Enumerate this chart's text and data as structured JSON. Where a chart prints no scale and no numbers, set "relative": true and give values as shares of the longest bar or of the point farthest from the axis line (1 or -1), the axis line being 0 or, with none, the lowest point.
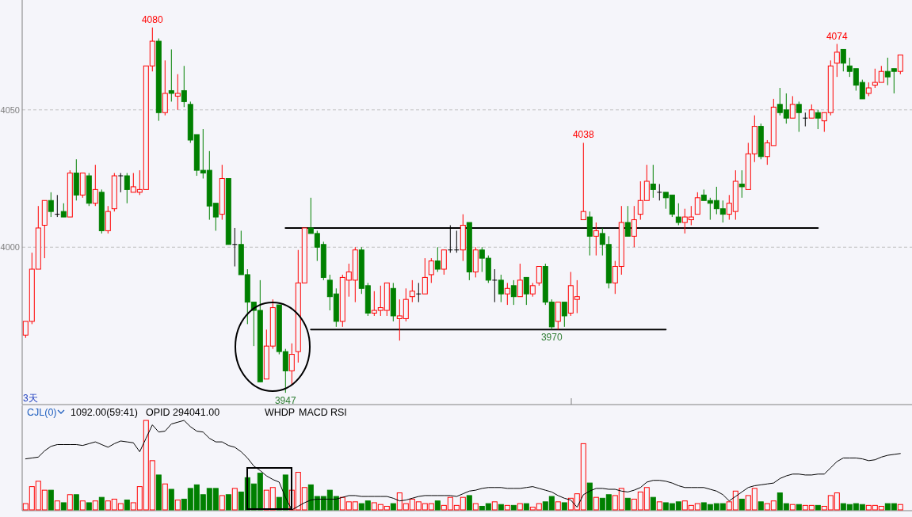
{
  "chart_data": [
    {
      "type": "candlestick",
      "categories": [
        null,
        null,
        null,
        null,
        null,
        null,
        null,
        null,
        null,
        null,
        null,
        null,
        null,
        null,
        null,
        null,
        null,
        null,
        null,
        null,
        null,
        null,
        null,
        null,
        null,
        null,
        null,
        null,
        null,
        null,
        null,
        null,
        null,
        null,
        null,
        null,
        null,
        null,
        null,
        null,
        null,
        null,
        null,
        null,
        null,
        null,
        null,
        null,
        null,
        null,
        null,
        null,
        null,
        null,
        null,
        null,
        null,
        null,
        null,
        null,
        null,
        null,
        null,
        null,
        null,
        null,
        null,
        null,
        null,
        null,
        null,
        null,
        null,
        null,
        null,
        null,
        null,
        null,
        null,
        null,
        null,
        null,
        null,
        null,
        null,
        null,
        null,
        null,
        null,
        null,
        null,
        null,
        null,
        null,
        null,
        null,
        null,
        null,
        null,
        null,
        null,
        null,
        null,
        null,
        null,
        null,
        null,
        null,
        null,
        null,
        null,
        null,
        null,
        null,
        null,
        null,
        null,
        null,
        null,
        null,
        null,
        null,
        null,
        null,
        null,
        null,
        null,
        null,
        null,
        null,
        null,
        null,
        null,
        null,
        null,
        null,
        null,
        null,
        null
      ],
      "ohlc": [
        [
          3968,
          3973,
          3967,
          3973
        ],
        [
          3973,
          3998,
          3972,
          3992
        ],
        [
          3992,
          4015,
          3992,
          4007
        ],
        [
          4008,
          4017,
          3996,
          4017
        ],
        [
          4017,
          4020,
          4011,
          4013
        ],
        [
          4012,
          4019,
          4011,
          4012
        ],
        [
          4013,
          4016,
          4011,
          4011
        ],
        [
          4011,
          4028,
          4011,
          4027
        ],
        [
          4027,
          4032,
          4017,
          4019
        ],
        [
          4019,
          4027,
          4018,
          4027
        ],
        [
          4026,
          4027,
          4015,
          4016
        ],
        [
          4016,
          4030,
          4015,
          4021
        ],
        [
          4020,
          4021,
          4005,
          4006
        ],
        [
          4006,
          4015,
          4005,
          4013
        ],
        [
          4014,
          4027,
          4013,
          4026
        ],
        [
          4026,
          4027,
          4020,
          4026
        ],
        [
          4026,
          4027,
          4016,
          4021
        ],
        [
          4020,
          4027,
          4020,
          4022
        ],
        [
          4020,
          4028,
          4019,
          4021
        ],
        [
          4021,
          4066,
          4021,
          4066
        ],
        [
          4066,
          4080,
          4064,
          4075
        ],
        [
          4075,
          4076,
          4046,
          4049
        ],
        [
          4049,
          4068,
          4048,
          4056
        ],
        [
          4057,
          4072,
          4053,
          4056
        ],
        [
          4055,
          4063,
          4050,
          4056
        ],
        [
          4057,
          4066,
          4051,
          4053
        ],
        [
          4052,
          4053,
          4038,
          4039
        ],
        [
          4041,
          4041,
          4026,
          4028
        ],
        [
          4028,
          4043,
          4025,
          4027
        ],
        [
          4028,
          4035,
          4010,
          4015
        ],
        [
          4016,
          4016,
          4006,
          4011
        ],
        [
          4012,
          4030,
          4010,
          4025
        ],
        [
          4025,
          4025,
          4001,
          4001
        ],
        [
          4001,
          4007,
          3993,
          4001
        ],
        [
          4001,
          4006,
          3990,
          3990
        ],
        [
          3990,
          3992,
          3972,
          3980
        ],
        [
          3980,
          3980,
          3964,
          3977
        ],
        [
          3977,
          3988,
          3951,
          3951
        ],
        [
          3952,
          3970,
          3952,
          3964
        ],
        [
          3964,
          3981,
          3963,
          3978
        ],
        [
          3979,
          3979,
          3961,
          3962
        ],
        [
          3962,
          3963,
          3947,
          3955
        ],
        [
          3955,
          3965,
          3950,
          3961
        ],
        [
          3962,
          3999,
          3958,
          3987
        ],
        [
          3987,
          4007,
          3987,
          4007
        ],
        [
          4007,
          4018,
          4005,
          4005
        ],
        [
          4005,
          4006,
          3995,
          4000
        ],
        [
          4001,
          4002,
          3988,
          3989
        ],
        [
          3988,
          3990,
          3977,
          3982
        ],
        [
          3983,
          3985,
          3971,
          3973
        ],
        [
          3973,
          3990,
          3971,
          3989
        ],
        [
          3988,
          3994,
          3982,
          3991
        ],
        [
          3988,
          4000,
          3980,
          3999
        ],
        [
          3999,
          4000,
          3983,
          3985
        ],
        [
          3986,
          3987,
          3975,
          3976
        ],
        [
          3976,
          3984,
          3975,
          3977
        ],
        [
          3977,
          3986,
          3975,
          3978
        ],
        [
          3977,
          3987,
          3975,
          3987
        ],
        [
          3985,
          3987,
          3973,
          3975
        ],
        [
          3974,
          3981,
          3966,
          3975
        ],
        [
          3974,
          3985,
          3973,
          3981
        ],
        [
          3982,
          3988,
          3980,
          3984
        ],
        [
          3983,
          3987,
          3980,
          3983
        ],
        [
          3983,
          3996,
          3983,
          3989
        ],
        [
          3990,
          3996,
          3987,
          3995
        ],
        [
          3995,
          4000,
          3991,
          3992
        ],
        [
          3992,
          3999,
          3990,
          3999
        ],
        [
          3999,
          4008,
          3998,
          3999
        ],
        [
          3999,
          4006,
          3998,
          3999
        ],
        [
          3999,
          4012,
          3995,
          4008
        ],
        [
          4009,
          4009,
          3988,
          3991
        ],
        [
          3991,
          4000,
          3989,
          3999
        ],
        [
          3999,
          4000,
          3991,
          3996
        ],
        [
          3996,
          3997,
          3987,
          3988
        ],
        [
          3988,
          3992,
          3980,
          3988
        ],
        [
          3988,
          3990,
          3980,
          3983
        ],
        [
          3983,
          3987,
          3979,
          3985
        ],
        [
          3986,
          3988,
          3979,
          3982
        ],
        [
          3982,
          3994,
          3982,
          3988
        ],
        [
          3989,
          3989,
          3979,
          3983
        ],
        [
          3983,
          3987,
          3982,
          3986
        ],
        [
          3987,
          3993,
          3986,
          3993
        ],
        [
          3993,
          3994,
          3979,
          3980
        ],
        [
          3980,
          3981,
          3970,
          3971
        ],
        [
          3973,
          3980,
          3970,
          3980
        ],
        [
          3980,
          3980,
          3971,
          3975
        ],
        [
          3976,
          3991,
          3975,
          3986
        ],
        [
          3981,
          3988,
          3976,
          3982
        ],
        [
          4010,
          4038,
          4010,
          4013
        ],
        [
          4011,
          4013,
          3997,
          4004
        ],
        [
          4004,
          4009,
          3997,
          4006
        ],
        [
          4005,
          4007,
          3997,
          4001
        ],
        [
          4001,
          4004,
          3985,
          3987
        ],
        [
          3987,
          3995,
          3983,
          3993
        ],
        [
          3993,
          4015,
          3990,
          4009
        ],
        [
          4009,
          4015,
          4004,
          4004
        ],
        [
          4004,
          4015,
          4000,
          4010
        ],
        [
          4012,
          4024,
          4010,
          4017
        ],
        [
          4017,
          4030,
          4017,
          4024
        ],
        [
          4023,
          4030,
          4018,
          4021
        ],
        [
          4020,
          4023,
          4017,
          4020
        ],
        [
          4020,
          4020,
          4014,
          4018
        ],
        [
          4019,
          4019,
          4011,
          4012
        ],
        [
          4011,
          4016,
          4008,
          4009
        ],
        [
          4009,
          4014,
          4005,
          4011
        ],
        [
          4010,
          4015,
          4008,
          4011
        ],
        [
          4012,
          4020,
          4012,
          4018
        ],
        [
          4019,
          4021,
          4017,
          4017
        ],
        [
          4017,
          4018,
          4010,
          4016
        ],
        [
          4017,
          4022,
          4012,
          4014
        ],
        [
          4014,
          4017,
          4009,
          4012
        ],
        [
          4012,
          4019,
          4010,
          4016
        ],
        [
          4013,
          4028,
          4010,
          4024
        ],
        [
          4023,
          4028,
          4018,
          4022
        ],
        [
          4021,
          4038,
          4021,
          4034
        ],
        [
          4034,
          4048,
          4031,
          4044
        ],
        [
          4044,
          4045,
          4032,
          4033
        ],
        [
          4033,
          4039,
          4030,
          4038
        ],
        [
          4037,
          4054,
          4037,
          4051
        ],
        [
          4052,
          4058,
          4048,
          4049
        ],
        [
          4050,
          4056,
          4045,
          4047
        ],
        [
          4047,
          4055,
          4047,
          4052
        ],
        [
          4052,
          4053,
          4042,
          4049
        ],
        [
          4047,
          4049,
          4044,
          4047
        ],
        [
          4047,
          4052,
          4047,
          4050
        ],
        [
          4049,
          4050,
          4043,
          4047
        ],
        [
          4046,
          4049,
          4042,
          4049
        ],
        [
          4049,
          4068,
          4048,
          4066
        ],
        [
          4067,
          4074,
          4062,
          4071
        ],
        [
          4072,
          4072,
          4064,
          4067
        ],
        [
          4066,
          4069,
          4062,
          4064
        ],
        [
          4065,
          4065,
          4057,
          4059
        ],
        [
          4060,
          4061,
          4054,
          4054
        ],
        [
          4056,
          4060,
          4055,
          4058
        ],
        [
          4059,
          4065,
          4058,
          4060
        ],
        [
          4060,
          4066,
          4060,
          4064
        ],
        [
          4064,
          4069,
          4059,
          4062
        ],
        [
          4065,
          4065,
          4056,
          4064
        ],
        [
          4064,
          4070,
          4063,
          4070
        ]
      ],
      "colors": [
        "#ff0000",
        "#ff0000",
        "#ff0000",
        "#ff0000",
        "#008000",
        "#000000",
        "#008000",
        "#ff0000",
        "#008000",
        "#ff0000",
        "#008000",
        "#ff0000",
        "#008000",
        "#ff0000",
        "#ff0000",
        "#000000",
        "#008000",
        "#ff0000",
        "#ff0000",
        "#ff0000",
        "#ff0000",
        "#008000",
        "#ff0000",
        "#008000",
        "#ff0000",
        "#008000",
        "#008000",
        "#008000",
        "#008000",
        "#008000",
        "#008000",
        "#ff0000",
        "#008000",
        "#000000",
        "#008000",
        "#008000",
        "#008000",
        "#008000",
        "#ff0000",
        "#ff0000",
        "#008000",
        "#008000",
        "#ff0000",
        "#ff0000",
        "#ff0000",
        "#008000",
        "#008000",
        "#008000",
        "#008000",
        "#008000",
        "#ff0000",
        "#ff0000",
        "#ff0000",
        "#008000",
        "#008000",
        "#ff0000",
        "#ff0000",
        "#ff0000",
        "#008000",
        "#ff0000",
        "#ff0000",
        "#ff0000",
        "#000000",
        "#ff0000",
        "#ff0000",
        "#008000",
        "#ff0000",
        "#000000",
        "#000000",
        "#ff0000",
        "#008000",
        "#ff0000",
        "#008000",
        "#008000",
        "#000000",
        "#008000",
        "#ff0000",
        "#008000",
        "#ff0000",
        "#008000",
        "#ff0000",
        "#ff0000",
        "#008000",
        "#008000",
        "#ff0000",
        "#008000",
        "#ff0000",
        "#ff0000",
        "#ff0000",
        "#008000",
        "#ff0000",
        "#008000",
        "#008000",
        "#ff0000",
        "#ff0000",
        "#008000",
        "#ff0000",
        "#ff0000",
        "#ff0000",
        "#008000",
        "#000000",
        "#008000",
        "#008000",
        "#008000",
        "#ff0000",
        "#ff0000",
        "#ff0000",
        "#008000",
        "#008000",
        "#008000",
        "#008000",
        "#ff0000",
        "#ff0000",
        "#008000",
        "#ff0000",
        "#ff0000",
        "#008000",
        "#ff0000",
        "#ff0000",
        "#008000",
        "#008000",
        "#ff0000",
        "#008000",
        "#000000",
        "#ff0000",
        "#008000",
        "#ff0000",
        "#ff0000",
        "#ff0000",
        "#008000",
        "#008000",
        "#008000",
        "#008000",
        "#ff0000",
        "#ff0000",
        "#ff0000",
        "#008000",
        "#008000",
        "#ff0000"
      ],
      "series": [
        {
          "type": "line",
          "color": "#000000",
          "values": [
            null,
            null,
            null,
            null,
            null,
            null,
            null,
            null,
            null,
            null,
            null,
            null,
            null,
            null,
            null,
            null,
            null,
            null,
            null,
            null,
            null,
            null,
            null,
            null,
            null,
            null,
            null,
            null,
            null,
            null,
            null,
            null,
            null,
            null,
            null,
            null,
            null,
            null,
            null,
            null,
            null,
            4007,
            4007,
            4007,
            4007,
            4007,
            4007,
            4007,
            4007,
            4007,
            4007,
            4007,
            4007,
            4007,
            4007,
            4007,
            4007,
            4007,
            4007,
            4007,
            4007,
            4007,
            4007,
            4007,
            4007,
            4007,
            4007,
            4007,
            4007,
            4007,
            4007,
            4007,
            4007,
            4007,
            4007,
            4007,
            4007,
            4007,
            4007,
            4007,
            4007,
            4007,
            4007,
            4007,
            4007,
            4007,
            4007,
            4007,
            4007,
            4007,
            4007,
            4007,
            4007,
            4007,
            4007,
            4007,
            4007,
            4007,
            4007,
            4007,
            4007,
            4007,
            4007,
            4007,
            4007,
            4007,
            4007,
            4007,
            4007,
            4007,
            4007,
            4007,
            4007,
            4007,
            4007,
            4007,
            4007,
            4007,
            4007,
            4007,
            4007,
            4007,
            4007,
            4007,
            4007,
            4007,
            null,
            null,
            null,
            null,
            null,
            null,
            null,
            null,
            null,
            null,
            null,
            null,
            null
          ]
        },
        {
          "type": "line",
          "color": "#000000",
          "values": [
            null,
            null,
            null,
            null,
            null,
            null,
            null,
            null,
            null,
            null,
            null,
            null,
            null,
            null,
            null,
            null,
            null,
            null,
            null,
            null,
            null,
            null,
            null,
            null,
            null,
            null,
            null,
            null,
            null,
            null,
            null,
            null,
            null,
            null,
            null,
            null,
            null,
            null,
            null,
            null,
            null,
            null,
            null,
            null,
            null,
            3970,
            3970,
            3970,
            3970,
            3970,
            3970,
            3970,
            3970,
            3970,
            3970,
            3970,
            3970,
            3970,
            3970,
            3970,
            3970,
            3970,
            3970,
            3970,
            3970,
            3970,
            3970,
            3970,
            3970,
            3970,
            3970,
            3970,
            3970,
            3970,
            3970,
            3970,
            3970,
            3970,
            3970,
            3970,
            3970,
            3970,
            3970,
            3970,
            3970,
            3970,
            3970,
            3970,
            3970,
            3970,
            3970,
            3970,
            3970,
            3970,
            3970,
            3970,
            3970,
            3970,
            3970,
            3970,
            3970,
            3970,
            null,
            null,
            null,
            null,
            null,
            null,
            null,
            null,
            null,
            null,
            null,
            null,
            null,
            null,
            null,
            null,
            null,
            null,
            null,
            null,
            null,
            null,
            null,
            null,
            null,
            null,
            null,
            null,
            null,
            null,
            null,
            null,
            null,
            null,
            null,
            null,
            null
          ]
        }
      ],
      "ylim": [
        3943,
        4090
      ],
      "yticks": [
        4050,
        4000
      ],
      "grid": "y",
      "annotations": [
        {
          "text": "4080",
          "y": 4080
        },
        {
          "text": "4074",
          "y": 4074
        },
        {
          "text": "4038",
          "y": 4038
        },
        {
          "text": "3947",
          "y": 3947
        },
        {
          "text": "3970",
          "y": 3970
        },
        "3天"
      ]
    },
    {
      "type": "bar",
      "relative": true,
      "categories": [
        null,
        null,
        null,
        null,
        null,
        null,
        null,
        null,
        null,
        null,
        null,
        null,
        null,
        null,
        null,
        null,
        null,
        null,
        null,
        null,
        null,
        null,
        null,
        null,
        null,
        null,
        null,
        null,
        null,
        null,
        null,
        null,
        null,
        null,
        null,
        null,
        null,
        null,
        null,
        null,
        null,
        null,
        null,
        null,
        null,
        null,
        null,
        null,
        null,
        null,
        null,
        null,
        null,
        null,
        null,
        null,
        null,
        null,
        null,
        null,
        null,
        null,
        null,
        null,
        null,
        null,
        null,
        null,
        null,
        null,
        null,
        null,
        null,
        null,
        null,
        null,
        null,
        null,
        null,
        null,
        null,
        null,
        null,
        null,
        null,
        null,
        null,
        null,
        null,
        null,
        null,
        null,
        null,
        null,
        null,
        null,
        null,
        null,
        null,
        null,
        null,
        null,
        null,
        null,
        null,
        null,
        null,
        null,
        null,
        null,
        null,
        null,
        null,
        null,
        null,
        null,
        null,
        null,
        null,
        null,
        null,
        null,
        null,
        null,
        null,
        null,
        null,
        null,
        null,
        null,
        null,
        null,
        null,
        null,
        null,
        null,
        null,
        null,
        null
      ],
      "series": [
        {
          "type": "bar",
          "colors": [
            "#ff0000",
            "#ff0000",
            "#ff0000",
            "#ff0000",
            "#008000",
            "#ff0000",
            "#008000",
            "#ff0000",
            "#008000",
            "#ff0000",
            "#008000",
            "#ff0000",
            "#008000",
            "#ff0000",
            "#ff0000",
            "#ff0000",
            "#008000",
            "#ff0000",
            "#ff0000",
            "#ff0000",
            "#ff0000",
            "#008000",
            "#ff0000",
            "#008000",
            "#ff0000",
            "#008000",
            "#008000",
            "#008000",
            "#008000",
            "#008000",
            "#008000",
            "#ff0000",
            "#008000",
            "#ff0000",
            "#008000",
            "#008000",
            "#008000",
            "#008000",
            "#ff0000",
            "#ff0000",
            "#008000",
            "#008000",
            "#ff0000",
            "#ff0000",
            "#ff0000",
            "#008000",
            "#008000",
            "#008000",
            "#008000",
            "#008000",
            "#ff0000",
            "#ff0000",
            "#ff0000",
            "#008000",
            "#008000",
            "#ff0000",
            "#ff0000",
            "#ff0000",
            "#008000",
            "#ff0000",
            "#ff0000",
            "#ff0000",
            "#ff0000",
            "#ff0000",
            "#ff0000",
            "#008000",
            "#ff0000",
            "#ff0000",
            "#ff0000",
            "#ff0000",
            "#008000",
            "#ff0000",
            "#008000",
            "#008000",
            "#ff0000",
            "#008000",
            "#ff0000",
            "#008000",
            "#ff0000",
            "#008000",
            "#ff0000",
            "#ff0000",
            "#008000",
            "#008000",
            "#ff0000",
            "#008000",
            "#ff0000",
            "#ff0000",
            "#ff0000",
            "#008000",
            "#ff0000",
            "#008000",
            "#008000",
            "#ff0000",
            "#ff0000",
            "#008000",
            "#ff0000",
            "#ff0000",
            "#ff0000",
            "#008000",
            "#ff0000",
            "#008000",
            "#008000",
            "#008000",
            "#ff0000",
            "#ff0000",
            "#ff0000",
            "#008000",
            "#008000",
            "#008000",
            "#008000",
            "#ff0000",
            "#ff0000",
            "#008000",
            "#ff0000",
            "#ff0000",
            "#008000",
            "#ff0000",
            "#ff0000",
            "#008000",
            "#008000",
            "#ff0000",
            "#008000",
            "#ff0000",
            "#ff0000",
            "#008000",
            "#ff0000",
            "#ff0000",
            "#ff0000",
            "#008000",
            "#008000",
            "#008000",
            "#008000",
            "#ff0000",
            "#ff0000",
            "#ff0000",
            "#008000",
            "#008000",
            "#ff0000"
          ],
          "values": [
            0.07,
            0.26,
            0.32,
            0.22,
            0.22,
            0.1,
            0.08,
            0.17,
            0.17,
            0.1,
            0.08,
            0.1,
            0.14,
            0.1,
            0.12,
            0.07,
            0.11,
            0.08,
            0.26,
            1,
            0.55,
            0.39,
            0.29,
            0.23,
            0.11,
            0.12,
            0.24,
            0.28,
            0.17,
            0.24,
            0.24,
            0.16,
            0.17,
            0.24,
            0.2,
            0.36,
            0.29,
            0.41,
            0.22,
            0.25,
            0.14,
            0.39,
            0.22,
            0.42,
            0.25,
            0.28,
            0.15,
            0.15,
            0.22,
            0.15,
            0.14,
            0.09,
            0.09,
            0.07,
            0.1,
            0.08,
            0.06,
            0.04,
            0.07,
            0.19,
            0.07,
            0.12,
            0.09,
            0.07,
            0.07,
            0.1,
            0.05,
            0.14,
            0.05,
            0.14,
            0.16,
            0.07,
            0.04,
            0.07,
            0.09,
            0.06,
            0.05,
            0.05,
            0.07,
            0.07,
            0.03,
            0.07,
            0.09,
            0.15,
            0.09,
            0.08,
            0.13,
            0.18,
            0.74,
            0.3,
            0.14,
            0.13,
            0.17,
            0.16,
            0.24,
            0.13,
            0.12,
            0.2,
            0.25,
            0.14,
            0.09,
            0.08,
            0.07,
            0.09,
            0.1,
            0.05,
            0.07,
            0.08,
            0.06,
            0.07,
            0.07,
            0.09,
            0.21,
            0.12,
            0.16,
            0.24,
            0.09,
            0.07,
            0.1,
            0.19,
            0.07,
            0.06,
            0.06,
            0.05,
            0.05,
            0.05,
            0.04,
            0.16,
            0.19,
            0.07,
            0.06,
            0.07,
            0.06,
            0.05,
            0.05,
            0.04,
            0.07,
            0.07,
            0.06
          ]
        },
        {
          "type": "line",
          "axis": "y2",
          "color": "#000000",
          "values": [
            0.57,
            0.58,
            0.59,
            0.66,
            0.71,
            0.73,
            0.73,
            0.73,
            0.73,
            0.72,
            0.74,
            0.76,
            0.73,
            0.7,
            0.74,
            0.77,
            0.76,
            0.75,
            0.65,
            0.8,
            0.95,
            0.87,
            0.88,
            0.96,
            0.98,
            1,
            0.93,
            0.88,
            0.87,
            0.8,
            0.76,
            0.76,
            0.72,
            0.7,
            0.65,
            0.58,
            0.49,
            0.44,
            0.38,
            0.34,
            0.31,
            0.14,
            0,
            0.04,
            0.08,
            0.11,
            0.12,
            0.12,
            0.12,
            0.12,
            0.14,
            0.16,
            0.16,
            0.15,
            0.15,
            0.15,
            0.15,
            0.15,
            0.13,
            0.1,
            0.11,
            0.13,
            0.15,
            0.16,
            0.16,
            0.16,
            0.16,
            0.16,
            0.15,
            0.18,
            0.21,
            0.22,
            0.24,
            0.25,
            0.25,
            0.25,
            0.24,
            0.24,
            0.24,
            0.25,
            0.26,
            0.24,
            0.22,
            0.2,
            0.16,
            0.13,
            0.11,
            0.03,
            0.17,
            0.21,
            0.24,
            0.24,
            0.23,
            0.23,
            0.21,
            0.2,
            0.22,
            0.25,
            0.31,
            0.33,
            0.33,
            0.32,
            0.3,
            0.27,
            0.25,
            0.25,
            0.25,
            0.25,
            0.23,
            0.21,
            0.17,
            0.1,
            0.15,
            0.2,
            0.25,
            0.27,
            0.28,
            0.29,
            0.3,
            0.35,
            0.38,
            0.4,
            0.4,
            0.39,
            0.39,
            0.4,
            0.4,
            0.47,
            0.54,
            0.58,
            0.58,
            0.58,
            0.57,
            0.55,
            0.56,
            0.59,
            0.61,
            0.62,
            0.63
          ]
        }
      ],
      "annotations": [
        "CJL(0)",
        "1092.00(59:41)",
        "OPID 294041.00",
        "WHDP",
        "MACD",
        "RSI"
      ]
    }
  ]
}
